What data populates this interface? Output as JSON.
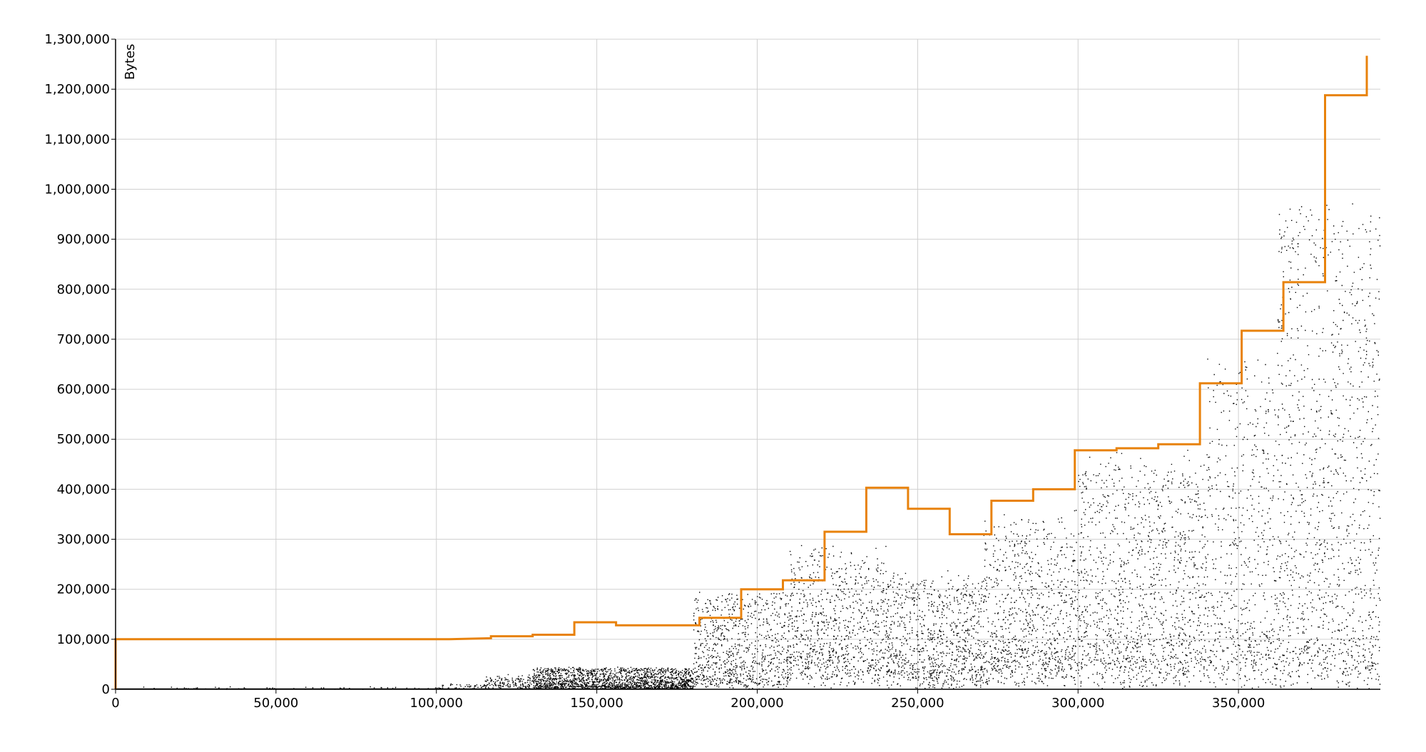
{
  "chart_data": {
    "type": "scatter",
    "title": "",
    "xlabel": "",
    "ylabel": "Bytes",
    "xlim": [
      0,
      390000
    ],
    "ylim": [
      0,
      1300000
    ],
    "grid": true,
    "x_ticks": [
      {
        "value": 0,
        "label": "0"
      },
      {
        "value": 50000,
        "label": "50,000"
      },
      {
        "value": 100000,
        "label": "100,000"
      },
      {
        "value": 150000,
        "label": "150,000"
      },
      {
        "value": 200000,
        "label": "200,000"
      },
      {
        "value": 250000,
        "label": "250,000"
      },
      {
        "value": 300000,
        "label": "300,000"
      },
      {
        "value": 350000,
        "label": "350,000"
      }
    ],
    "y_ticks": [
      {
        "value": 0,
        "label": "0"
      },
      {
        "value": 100000,
        "label": "100,000"
      },
      {
        "value": 200000,
        "label": "200,000"
      },
      {
        "value": 300000,
        "label": "300,000"
      },
      {
        "value": 400000,
        "label": "400,000"
      },
      {
        "value": 500000,
        "label": "500,000"
      },
      {
        "value": 600000,
        "label": "600,000"
      },
      {
        "value": 700000,
        "label": "700,000"
      },
      {
        "value": 800000,
        "label": "800,000"
      },
      {
        "value": 900000,
        "label": "900,000"
      },
      {
        "value": 1000000,
        "label": "1,000,000"
      },
      {
        "value": 1100000,
        "label": "1,100,000"
      },
      {
        "value": 1200000,
        "label": "1,200,000"
      },
      {
        "value": 1300000,
        "label": "1,300,000"
      }
    ],
    "series": [
      {
        "kind": "step-line",
        "color": "#e8820c",
        "points": [
          [
            0,
            0
          ],
          [
            0,
            100000
          ],
          [
            13000,
            100000
          ],
          [
            104000,
            100000
          ],
          [
            117000,
            102000
          ],
          [
            117000,
            106000
          ],
          [
            130000,
            106000
          ],
          [
            130000,
            109000
          ],
          [
            143000,
            109000
          ],
          [
            143000,
            134000
          ],
          [
            156000,
            134000
          ],
          [
            156000,
            128000
          ],
          [
            182000,
            128000
          ],
          [
            182000,
            143000
          ],
          [
            195000,
            143000
          ],
          [
            195000,
            200000
          ],
          [
            208000,
            200000
          ],
          [
            208000,
            218000
          ],
          [
            221000,
            218000
          ],
          [
            221000,
            315000
          ],
          [
            234000,
            315000
          ],
          [
            234000,
            403000
          ],
          [
            247000,
            403000
          ],
          [
            247000,
            361000
          ],
          [
            260000,
            361000
          ],
          [
            260000,
            310000
          ],
          [
            273000,
            310000
          ],
          [
            273000,
            377000
          ],
          [
            286000,
            377000
          ],
          [
            286000,
            400000
          ],
          [
            299000,
            400000
          ],
          [
            299000,
            478000
          ],
          [
            312000,
            478000
          ],
          [
            312000,
            482000
          ],
          [
            325000,
            482000
          ],
          [
            325000,
            490000
          ],
          [
            338000,
            490000
          ],
          [
            338000,
            612000
          ],
          [
            351000,
            612000
          ],
          [
            351000,
            717000
          ],
          [
            364000,
            717000
          ],
          [
            364000,
            814000
          ],
          [
            377000,
            814000
          ],
          [
            377000,
            1188000
          ],
          [
            390000,
            1188000
          ],
          [
            390000,
            1267000
          ]
        ]
      },
      {
        "kind": "scatter",
        "color": "#000000",
        "description_segments": [
          {
            "x_start": 0,
            "x_end": 100000,
            "y_base": 0,
            "y_spread": 5000,
            "density": 0.004
          },
          {
            "x_start": 100000,
            "x_end": 115000,
            "y_base": 2000,
            "y_spread": 10000,
            "density": 0.02
          },
          {
            "x_start": 115000,
            "x_end": 130000,
            "y_base": 8000,
            "y_spread": 22000,
            "density": 0.06
          },
          {
            "x_start": 130000,
            "x_end": 180000,
            "y_base": 5000,
            "y_spread": 40000,
            "density": 0.2
          },
          {
            "x_start": 180000,
            "x_end": 210000,
            "y_base": 20000,
            "y_spread": 180000,
            "density": 0.16
          },
          {
            "x_start": 210000,
            "x_end": 240000,
            "y_base": 60000,
            "y_spread": 240000,
            "density": 0.16
          },
          {
            "x_start": 240000,
            "x_end": 270000,
            "y_base": 40000,
            "y_spread": 200000,
            "density": 0.17
          },
          {
            "x_start": 270000,
            "x_end": 300000,
            "y_base": 60000,
            "y_spread": 300000,
            "density": 0.17
          },
          {
            "x_start": 300000,
            "x_end": 340000,
            "y_base": 60000,
            "y_spread": 420000,
            "density": 0.18
          },
          {
            "x_start": 340000,
            "x_end": 362000,
            "y_base": 60000,
            "y_spread": 620000,
            "density": 0.16
          },
          {
            "x_start": 362000,
            "x_end": 394000,
            "y_base": 60000,
            "y_spread": 920000,
            "density": 0.22
          }
        ]
      }
    ]
  }
}
